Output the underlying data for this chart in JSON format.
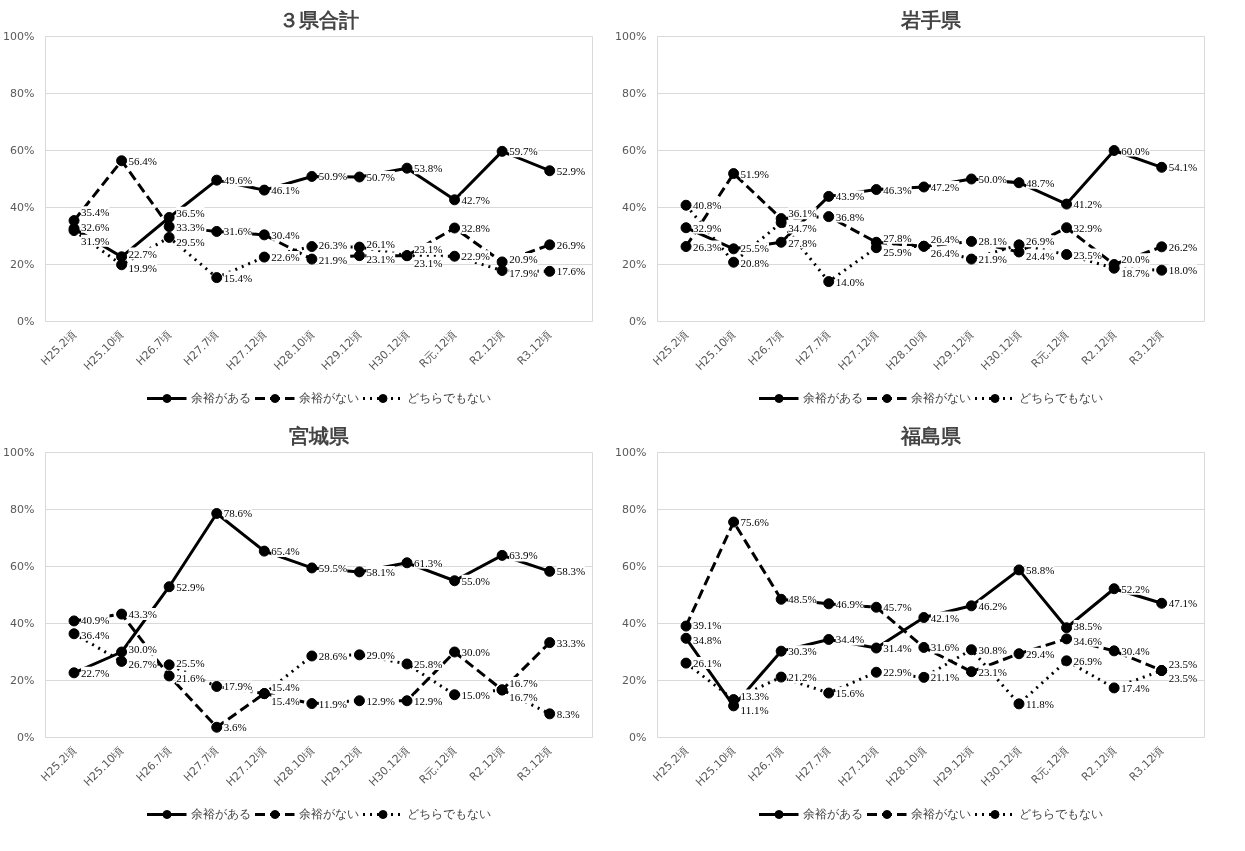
{
  "chart_data": [
    {
      "type": "line",
      "title": "３県合計",
      "categories": [
        "H25.2頃",
        "H25.10頃",
        "H26.7頃",
        "H27.7頃",
        "H27.12頃",
        "H28.10頃",
        "H29.12頃",
        "H30.12頃",
        "R元.12頃",
        "R2.12頃",
        "R3.12頃"
      ],
      "ylim": [
        0,
        100
      ],
      "yticks": [
        {
          "value": 0,
          "label": "0%"
        },
        {
          "value": 20,
          "label": "20%"
        },
        {
          "value": 40,
          "label": "40%"
        },
        {
          "value": 60,
          "label": "60%"
        },
        {
          "value": 80,
          "label": "80%"
        },
        {
          "value": 100,
          "label": "100%"
        }
      ],
      "grid": "y",
      "legend": "bottom",
      "marker": "circle",
      "series": [
        {
          "name": "余裕がある",
          "color": "#000000",
          "line_style": "solid",
          "values": [
            32.6,
            22.7,
            36.5,
            49.6,
            46.1,
            50.9,
            50.7,
            53.8,
            42.7,
            59.7,
            52.9
          ],
          "value_labels": [
            "32.6%",
            "22.7%",
            "36.5%",
            "49.6%",
            "46.1%",
            "50.9%",
            "50.7%",
            "53.8%",
            "42.7%",
            "59.7%",
            "52.9%"
          ]
        },
        {
          "name": "余裕がない",
          "color": "#000000",
          "line_style": "dashed",
          "values": [
            35.4,
            56.4,
            33.3,
            31.6,
            30.4,
            21.9,
            23.1,
            23.1,
            32.8,
            20.9,
            26.9
          ],
          "value_labels": [
            "35.4%",
            "56.4%",
            "33.3%",
            "31.6%",
            "30.4%",
            "21.9%",
            "23.1%",
            "23.1%",
            "32.8%",
            "20.9%",
            "26.9%"
          ]
        },
        {
          "name": "どちらでもない",
          "color": "#000000",
          "line_style": "dotted",
          "values": [
            31.9,
            19.9,
            29.5,
            15.4,
            22.6,
            26.3,
            26.1,
            23.1,
            22.9,
            17.9,
            17.6
          ],
          "value_labels": [
            "31.9%",
            "19.9%",
            "29.5%",
            "15.4%",
            "22.6%",
            "26.3%",
            "26.1%",
            "23.1%",
            "22.9%",
            "17.9%",
            "17.6%"
          ]
        }
      ]
    },
    {
      "type": "line",
      "title": "岩手県",
      "categories": [
        "H25.2頃",
        "H25.10頃",
        "H26.7頃",
        "H27.7頃",
        "H27.12頃",
        "H28.10頃",
        "H29.12頃",
        "H30.12頃",
        "R元.12頃",
        "R2.12頃",
        "R3.12頃"
      ],
      "ylim": [
        0,
        100
      ],
      "yticks": [
        {
          "value": 0,
          "label": "0%"
        },
        {
          "value": 20,
          "label": "20%"
        },
        {
          "value": 40,
          "label": "40%"
        },
        {
          "value": 60,
          "label": "60%"
        },
        {
          "value": 80,
          "label": "80%"
        },
        {
          "value": 100,
          "label": "100%"
        }
      ],
      "grid": "y",
      "legend": "bottom",
      "marker": "circle",
      "series": [
        {
          "name": "余裕がある",
          "color": "#000000",
          "line_style": "solid",
          "values": [
            32.9,
            25.5,
            27.8,
            43.9,
            46.3,
            47.2,
            50.0,
            48.7,
            41.2,
            60.0,
            54.1
          ],
          "value_labels": [
            "32.9%",
            "25.5%",
            "27.8%",
            "43.9%",
            "46.3%",
            "47.2%",
            "50.0%",
            "48.7%",
            "41.2%",
            "60.0%",
            "54.1%"
          ]
        },
        {
          "name": "余裕がない",
          "color": "#000000",
          "line_style": "dashed",
          "values": [
            26.3,
            51.9,
            36.1,
            36.8,
            27.8,
            26.4,
            28.1,
            24.4,
            32.9,
            20.0,
            26.2
          ],
          "value_labels": [
            "26.3%",
            "51.9%",
            "36.1%",
            "36.8%",
            "27.8%",
            "26.4%",
            "28.1%",
            "24.4%",
            "32.9%",
            "20.0%",
            "26.2%"
          ]
        },
        {
          "name": "どちらでもない",
          "color": "#000000",
          "line_style": "dotted",
          "values": [
            40.8,
            20.8,
            34.7,
            14.0,
            25.9,
            26.4,
            21.9,
            26.9,
            23.5,
            18.7,
            18.0
          ],
          "value_labels": [
            "40.8%",
            "20.8%",
            "34.7%",
            "14.0%",
            "25.9%",
            "26.4%",
            "21.9%",
            "26.9%",
            "23.5%",
            "18.7%",
            "18.0%"
          ]
        }
      ]
    },
    {
      "type": "line",
      "title": "宮城県",
      "categories": [
        "H25.2頃",
        "H25.10頃",
        "H26.7頃",
        "H27.7頃",
        "H27.12頃",
        "H28.10頃",
        "H29.12頃",
        "H30.12頃",
        "R元.12頃",
        "R2.12頃",
        "R3.12頃"
      ],
      "ylim": [
        0,
        100
      ],
      "yticks": [
        {
          "value": 0,
          "label": "0%"
        },
        {
          "value": 20,
          "label": "20%"
        },
        {
          "value": 40,
          "label": "40%"
        },
        {
          "value": 60,
          "label": "60%"
        },
        {
          "value": 80,
          "label": "80%"
        },
        {
          "value": 100,
          "label": "100%"
        }
      ],
      "grid": "y",
      "legend": "bottom",
      "marker": "circle",
      "series": [
        {
          "name": "余裕がある",
          "color": "#000000",
          "line_style": "solid",
          "values": [
            22.7,
            30.0,
            52.9,
            78.6,
            65.4,
            59.5,
            58.1,
            61.3,
            55.0,
            63.9,
            58.3
          ],
          "value_labels": [
            "22.7%",
            "30.0%",
            "52.9%",
            "78.6%",
            "65.4%",
            "59.5%",
            "58.1%",
            "61.3%",
            "55.0%",
            "63.9%",
            "58.3%"
          ]
        },
        {
          "name": "余裕がない",
          "color": "#000000",
          "line_style": "dashed",
          "values": [
            40.9,
            43.3,
            21.6,
            3.6,
            15.4,
            11.9,
            12.9,
            12.9,
            30.0,
            16.7,
            33.3
          ],
          "value_labels": [
            "40.9%",
            "43.3%",
            "21.6%",
            "3.6%",
            "15.4%",
            "11.9%",
            "12.9%",
            "12.9%",
            "30.0%",
            "16.7%",
            "33.3%"
          ]
        },
        {
          "name": "どちらでもない",
          "color": "#000000",
          "line_style": "dotted",
          "values": [
            36.4,
            26.7,
            25.5,
            17.9,
            15.4,
            28.6,
            29.0,
            25.8,
            15.0,
            16.7,
            8.3
          ],
          "value_labels": [
            "36.4%",
            "26.7%",
            "25.5%",
            "17.9%",
            "15.4%",
            "28.6%",
            "29.0%",
            "25.8%",
            "15.0%",
            "16.7%",
            "8.3%"
          ]
        }
      ]
    },
    {
      "type": "line",
      "title": "福島県",
      "categories": [
        "H25.2頃",
        "H25.10頃",
        "H26.7頃",
        "H27.7頃",
        "H27.12頃",
        "H28.10頃",
        "H29.12頃",
        "H30.12頃",
        "R元.12頃",
        "R2.12頃",
        "R3.12頃"
      ],
      "ylim": [
        0,
        100
      ],
      "yticks": [
        {
          "value": 0,
          "label": "0%"
        },
        {
          "value": 20,
          "label": "20%"
        },
        {
          "value": 40,
          "label": "40%"
        },
        {
          "value": 60,
          "label": "60%"
        },
        {
          "value": 80,
          "label": "80%"
        },
        {
          "value": 100,
          "label": "100%"
        }
      ],
      "grid": "y",
      "legend": "bottom",
      "marker": "circle",
      "series": [
        {
          "name": "余裕がある",
          "color": "#000000",
          "line_style": "solid",
          "values": [
            34.8,
            11.1,
            30.3,
            34.4,
            31.4,
            42.1,
            46.2,
            58.8,
            38.5,
            52.2,
            47.1
          ],
          "value_labels": [
            "34.8%",
            "11.1%",
            "30.3%",
            "34.4%",
            "31.4%",
            "42.1%",
            "46.2%",
            "58.8%",
            "38.5%",
            "52.2%",
            "47.1%"
          ]
        },
        {
          "name": "余裕がない",
          "color": "#000000",
          "line_style": "dashed",
          "values": [
            39.1,
            75.6,
            48.5,
            46.9,
            45.7,
            31.6,
            23.1,
            29.4,
            34.6,
            30.4,
            23.5
          ],
          "value_labels": [
            "39.1%",
            "75.6%",
            "48.5%",
            "46.9%",
            "45.7%",
            "31.6%",
            "23.1%",
            "29.4%",
            "34.6%",
            "30.4%",
            "23.5%"
          ]
        },
        {
          "name": "どちらでもない",
          "color": "#000000",
          "line_style": "dotted",
          "values": [
            26.1,
            13.3,
            21.2,
            15.6,
            22.9,
            21.1,
            30.8,
            11.8,
            26.9,
            17.4,
            23.5
          ],
          "value_labels": [
            "26.1%",
            "13.3%",
            "21.2%",
            "15.6%",
            "22.9%",
            "21.1%",
            "30.8%",
            "11.8%",
            "26.9%",
            "17.4%",
            "23.5%"
          ]
        }
      ]
    }
  ]
}
